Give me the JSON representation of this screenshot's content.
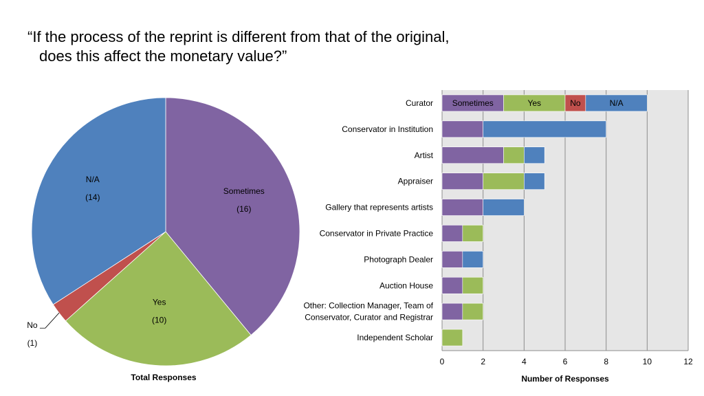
{
  "title_line1": "“If the process of the reprint is different from that of the original,",
  "title_line2": "does this affect the monetary value?”",
  "colors": {
    "sometimes": "#8064A2",
    "yes": "#9BBB59",
    "no": "#C0504D",
    "na": "#4F81BD"
  },
  "chart_data": [
    {
      "type": "pie",
      "xlabel": "Total Responses",
      "slices": [
        {
          "name": "Sometimes",
          "value": 16,
          "value_label": "(16)"
        },
        {
          "name": "Yes",
          "value": 10,
          "value_label": "(10)"
        },
        {
          "name": "No",
          "value": 1,
          "value_label": "(1)"
        },
        {
          "name": "N/A",
          "value": 14,
          "value_label": "(14)"
        }
      ]
    },
    {
      "type": "bar",
      "orientation": "horizontal",
      "stacked": true,
      "xlabel": "Number of Responses",
      "xlim": [
        0,
        12
      ],
      "ticks": [
        "0",
        "2",
        "4",
        "6",
        "8",
        "10",
        "12"
      ],
      "grid": true,
      "categories": [
        [
          "Curator"
        ],
        [
          "Conservator in Institution"
        ],
        [
          "Artist"
        ],
        [
          "Appraiser"
        ],
        [
          "Gallery that represents artists"
        ],
        [
          "Conservator in Private Practice"
        ],
        [
          "Photograph Dealer"
        ],
        [
          "Auction House"
        ],
        [
          "Other: Collection Manager, Team of",
          "Conservator, Curator and Registrar"
        ],
        [
          "Independent Scholar"
        ]
      ],
      "series": [
        {
          "name": "Sometimes",
          "values": [
            3,
            2,
            3,
            2,
            2,
            1,
            1,
            1,
            1,
            0
          ]
        },
        {
          "name": "Yes",
          "values": [
            3,
            0,
            1,
            2,
            0,
            1,
            0,
            1,
            1,
            1
          ]
        },
        {
          "name": "No",
          "values": [
            1,
            0,
            0,
            0,
            0,
            0,
            0,
            0,
            0,
            0
          ]
        },
        {
          "name": "N/A",
          "values": [
            3,
            6,
            1,
            1,
            2,
            0,
            1,
            0,
            0,
            0
          ]
        }
      ]
    }
  ]
}
